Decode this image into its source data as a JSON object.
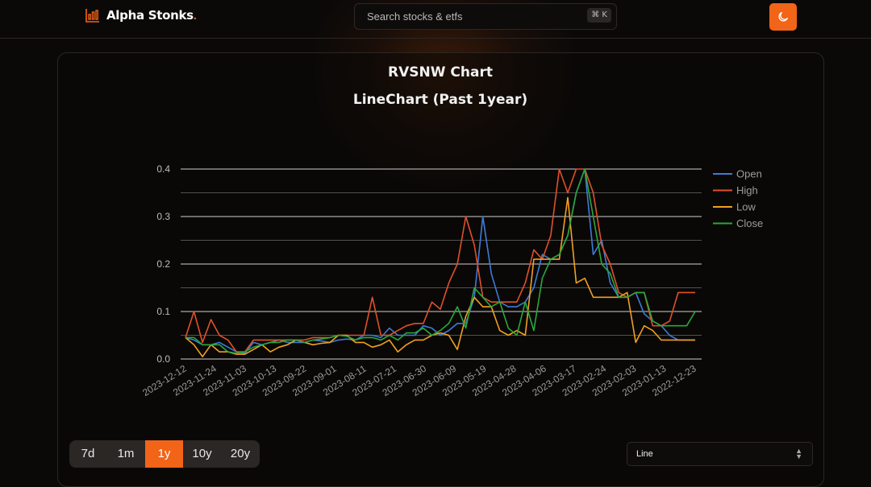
{
  "app": {
    "name": "Alpha Stonks",
    "name_dot": "."
  },
  "search": {
    "placeholder": "Search stocks & etfs",
    "shortcut": "⌘ K"
  },
  "theme_toggle": {
    "icon": "moon-icon"
  },
  "chart_titles": {
    "title": "RVSNW Chart",
    "subtitle": "LineChart (Past 1year)"
  },
  "periods": [
    {
      "label": "7d",
      "active": false
    },
    {
      "label": "1m",
      "active": false
    },
    {
      "label": "1y",
      "active": true
    },
    {
      "label": "10y",
      "active": false
    },
    {
      "label": "20y",
      "active": false
    }
  ],
  "chart_type_select": {
    "value": "Line"
  },
  "colors": {
    "accent": "#f26418",
    "open": "#3f7bd6",
    "high": "#e0502a",
    "low": "#f0a020",
    "close": "#28a83a"
  },
  "chart_data": {
    "type": "line",
    "title": "RVSNW Chart",
    "subtitle": "LineChart (Past 1year)",
    "xlabel": "",
    "ylabel": "",
    "ylim": [
      0,
      0.4
    ],
    "yticks": [
      "0.0",
      "0.1",
      "0.2",
      "0.3",
      "0.4"
    ],
    "xtick_labels": [
      "2023-12-12",
      "2023-11-24",
      "2023-11-03",
      "2023-10-13",
      "2023-09-22",
      "2023-09-01",
      "2023-08-11",
      "2023-07-21",
      "2023-06-30",
      "2023-06-09",
      "2023-05-19",
      "2023-04-28",
      "2023-04-06",
      "2023-03-17",
      "2023-02-24",
      "2023-02-03",
      "2023-01-13",
      "2022-12-23"
    ],
    "grid": true,
    "legend": "top-right",
    "series": [
      {
        "name": "Open",
        "values": [
          0.045,
          0.04,
          0.03,
          0.03,
          0.035,
          0.025,
          0.015,
          0.012,
          0.035,
          0.03,
          0.035,
          0.04,
          0.035,
          0.035,
          0.035,
          0.04,
          0.038,
          0.035,
          0.04,
          0.042,
          0.04,
          0.05,
          0.05,
          0.045,
          0.065,
          0.05,
          0.05,
          0.05,
          0.07,
          0.065,
          0.05,
          0.06,
          0.075,
          0.075,
          0.13,
          0.3,
          0.18,
          0.12,
          0.11,
          0.11,
          0.12,
          0.15,
          0.22,
          0.21,
          0.22,
          0.26,
          0.35,
          0.4,
          0.22,
          0.25,
          0.16,
          0.13,
          0.13,
          0.14,
          0.095,
          0.08,
          0.07,
          0.05,
          0.04,
          0.04,
          0.04
        ]
      },
      {
        "name": "High",
        "values": [
          0.045,
          0.1,
          0.035,
          0.083,
          0.05,
          0.04,
          0.015,
          0.015,
          0.04,
          0.04,
          0.04,
          0.04,
          0.04,
          0.04,
          0.04,
          0.045,
          0.045,
          0.045,
          0.05,
          0.05,
          0.05,
          0.05,
          0.13,
          0.05,
          0.05,
          0.06,
          0.07,
          0.075,
          0.075,
          0.12,
          0.105,
          0.16,
          0.2,
          0.3,
          0.24,
          0.13,
          0.12,
          0.12,
          0.12,
          0.12,
          0.16,
          0.23,
          0.21,
          0.26,
          0.4,
          0.35,
          0.4,
          0.4,
          0.35,
          0.24,
          0.2,
          0.14,
          0.13,
          0.14,
          0.14,
          0.07,
          0.07,
          0.08,
          0.14,
          0.14,
          0.14
        ]
      },
      {
        "name": "Low",
        "values": [
          0.045,
          0.03,
          0.005,
          0.03,
          0.015,
          0.015,
          0.01,
          0.01,
          0.02,
          0.03,
          0.015,
          0.025,
          0.03,
          0.04,
          0.035,
          0.03,
          0.033,
          0.035,
          0.05,
          0.05,
          0.035,
          0.035,
          0.025,
          0.03,
          0.04,
          0.015,
          0.03,
          0.04,
          0.04,
          0.05,
          0.055,
          0.05,
          0.02,
          0.09,
          0.13,
          0.11,
          0.11,
          0.06,
          0.05,
          0.06,
          0.05,
          0.21,
          0.21,
          0.21,
          0.21,
          0.34,
          0.16,
          0.17,
          0.13,
          0.13,
          0.13,
          0.13,
          0.14,
          0.035,
          0.07,
          0.06,
          0.04,
          0.04,
          0.04,
          0.04,
          0.04
        ]
      },
      {
        "name": "Close",
        "values": [
          0.045,
          0.045,
          0.03,
          0.03,
          0.03,
          0.015,
          0.012,
          0.015,
          0.025,
          0.03,
          0.035,
          0.035,
          0.04,
          0.04,
          0.035,
          0.04,
          0.042,
          0.045,
          0.05,
          0.048,
          0.04,
          0.045,
          0.045,
          0.04,
          0.05,
          0.04,
          0.055,
          0.055,
          0.065,
          0.05,
          0.06,
          0.075,
          0.11,
          0.065,
          0.15,
          0.13,
          0.11,
          0.12,
          0.065,
          0.05,
          0.12,
          0.06,
          0.17,
          0.21,
          0.22,
          0.26,
          0.35,
          0.4,
          0.3,
          0.2,
          0.18,
          0.13,
          0.13,
          0.14,
          0.14,
          0.08,
          0.07,
          0.07,
          0.07,
          0.07,
          0.1
        ]
      }
    ]
  }
}
